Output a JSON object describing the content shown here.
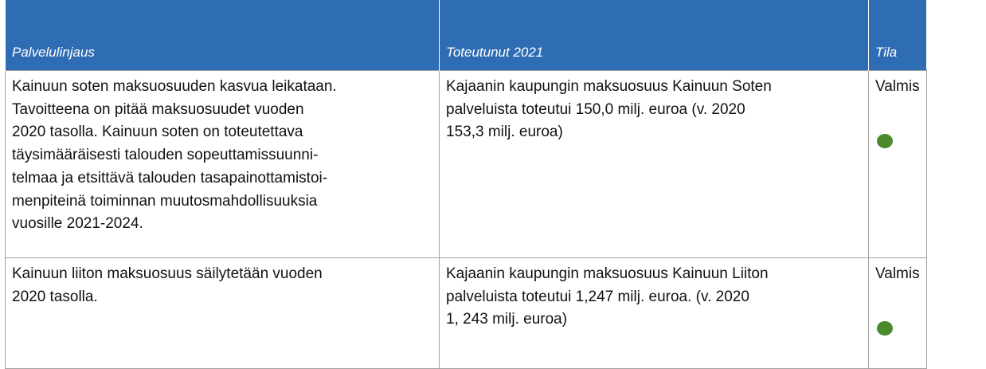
{
  "table": {
    "header": [
      "Palvelulinjaus",
      "Toteutunut 2021",
      "Tila"
    ],
    "rows": [
      {
        "cells": [
          {
            "lines": [
              "Kainuun soten maksuosuuden kasvua leikataan.",
              "Tavoitteena on pitää maksuosuudet vuoden",
              "2020 tasolla. Kainuun soten on toteutettava",
              "täysimääräisesti talouden sopeuttamissuunni-",
              "telmaa ja etsittävä talouden tasapainottamistoi-",
              "menpiteinä toiminnan muutosmahdollisuuksia",
              "vuosille 2021-2024."
            ]
          },
          {
            "lines": [
              "Kajaanin kaupungin maksuosuus Kainuun Soten",
              "palveluista toteutui 150,0 milj. euroa (v. 2020",
              "153,3 milj. euroa)"
            ]
          },
          {
            "lines": [
              "Valmis"
            ]
          }
        ]
      },
      {
        "cells": [
          {
            "lines": [
              "Kainuun liiton maksuosuus säilytetään vuoden",
              "2020 tasolla."
            ]
          },
          {
            "lines": [
              "Kajaanin kaupungin maksuosuus Kainuun Liiton",
              "palveluista toteutui 1,247 milj. euroa. (v. 2020",
              "1, 243 milj. euroa)"
            ]
          },
          {
            "lines": [
              "Valmis"
            ]
          }
        ]
      }
    ]
  }
}
